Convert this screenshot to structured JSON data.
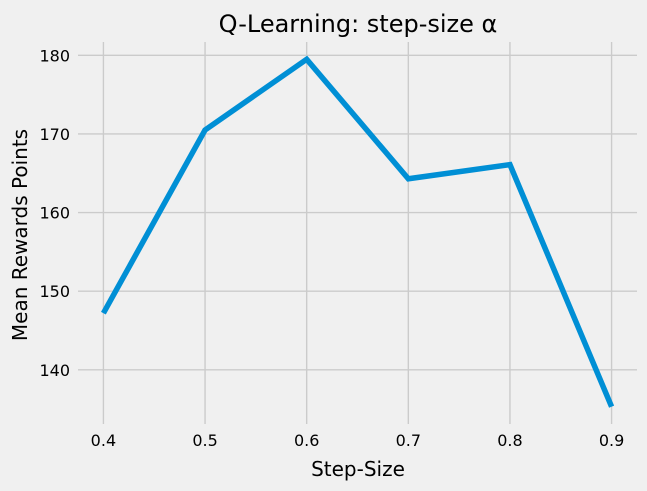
{
  "chart_data": {
    "type": "line",
    "title": "Q-Learning: step-size α",
    "xlabel": "Step-Size",
    "ylabel": "Mean Rewards Points",
    "x": [
      0.4,
      0.5,
      0.6,
      0.7,
      0.8,
      0.9
    ],
    "series": [
      {
        "values": [
          147.2,
          170.5,
          179.5,
          164.3,
          166.1,
          135.3
        ],
        "color": "#008fd5"
      }
    ],
    "x_ticks": [
      0.4,
      0.5,
      0.6,
      0.7,
      0.8,
      0.9
    ],
    "x_tick_labels": [
      "0.4",
      "0.5",
      "0.6",
      "0.7",
      "0.8",
      "0.9"
    ],
    "y_ticks": [
      140,
      150,
      160,
      170,
      180
    ],
    "y_tick_labels": [
      "140",
      "150",
      "160",
      "170",
      "180"
    ],
    "xlim": [
      0.375,
      0.925
    ],
    "ylim": [
      133.1,
      181.7
    ],
    "grid": true,
    "background_color": "#f0f0f0",
    "grid_color": "#cbcbcb"
  }
}
